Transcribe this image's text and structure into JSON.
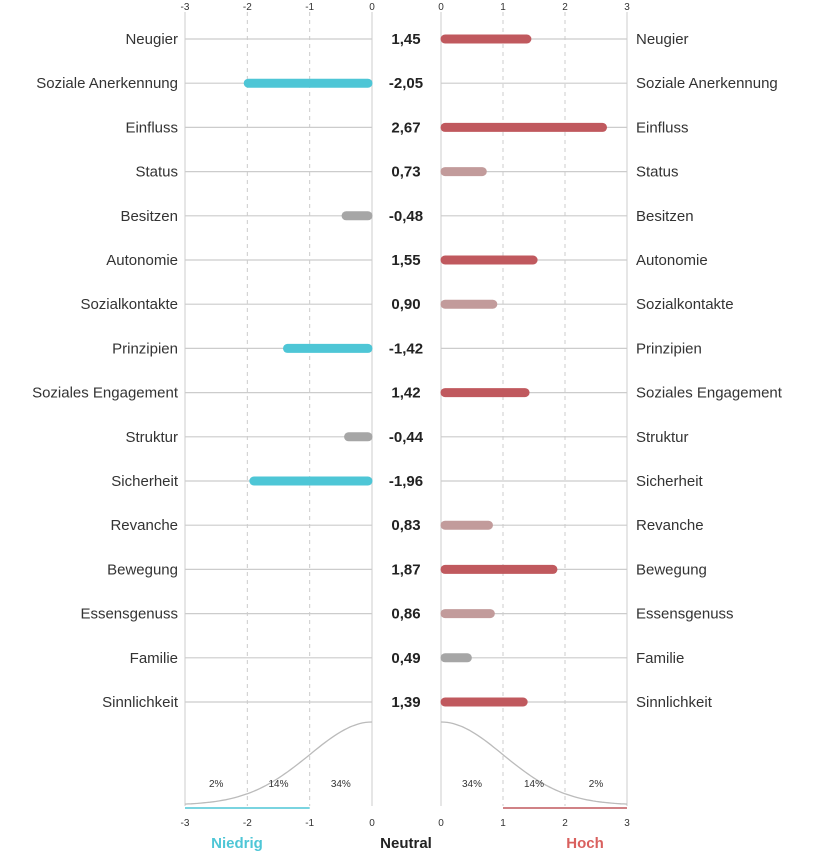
{
  "chart_data": {
    "type": "bar",
    "categories": [
      "Neugier",
      "Soziale Anerkennung",
      "Einfluss",
      "Status",
      "Besitzen",
      "Autonomie",
      "Sozialkontakte",
      "Prinzipien",
      "Soziales Engagement",
      "Struktur",
      "Sicherheit",
      "Revanche",
      "Bewegung",
      "Essensgenuss",
      "Familie",
      "Sinnlichkeit"
    ],
    "values": [
      1.45,
      -2.05,
      2.67,
      0.73,
      -0.48,
      1.55,
      0.9,
      -1.42,
      1.42,
      -0.44,
      -1.96,
      0.83,
      1.87,
      0.86,
      0.49,
      1.39
    ],
    "value_labels": [
      "1,45",
      "-2,05",
      "2,67",
      "0,73",
      "-0,48",
      "1,55",
      "0,90",
      "-1,42",
      "1,42",
      "-0,44",
      "-1,96",
      "0,83",
      "1,87",
      "0,86",
      "0,49",
      "1,39"
    ],
    "left_axis": {
      "range": [
        -3,
        0
      ],
      "ticks": [
        "-3",
        "-2",
        "-1",
        "0"
      ]
    },
    "right_axis": {
      "range": [
        0,
        3
      ],
      "ticks": [
        "0",
        "1",
        "2",
        "3"
      ]
    },
    "distribution_labels": {
      "left": [
        "2%",
        "14%",
        "34%"
      ],
      "right": [
        "34%",
        "14%",
        "2%"
      ]
    },
    "footer": {
      "low": "Niedrig",
      "neutral": "Neutral",
      "high": "Hoch"
    },
    "colors": {
      "low": "#4ec6d6",
      "high": "#c0595e",
      "medium": "#c29b9b",
      "neutral": "#a6a6a6",
      "grid": "#cccccc",
      "curve": "#bbbbbb",
      "low_text": "#4ec6d6",
      "high_text": "#d9605e",
      "neutral_text": "#222222"
    }
  }
}
